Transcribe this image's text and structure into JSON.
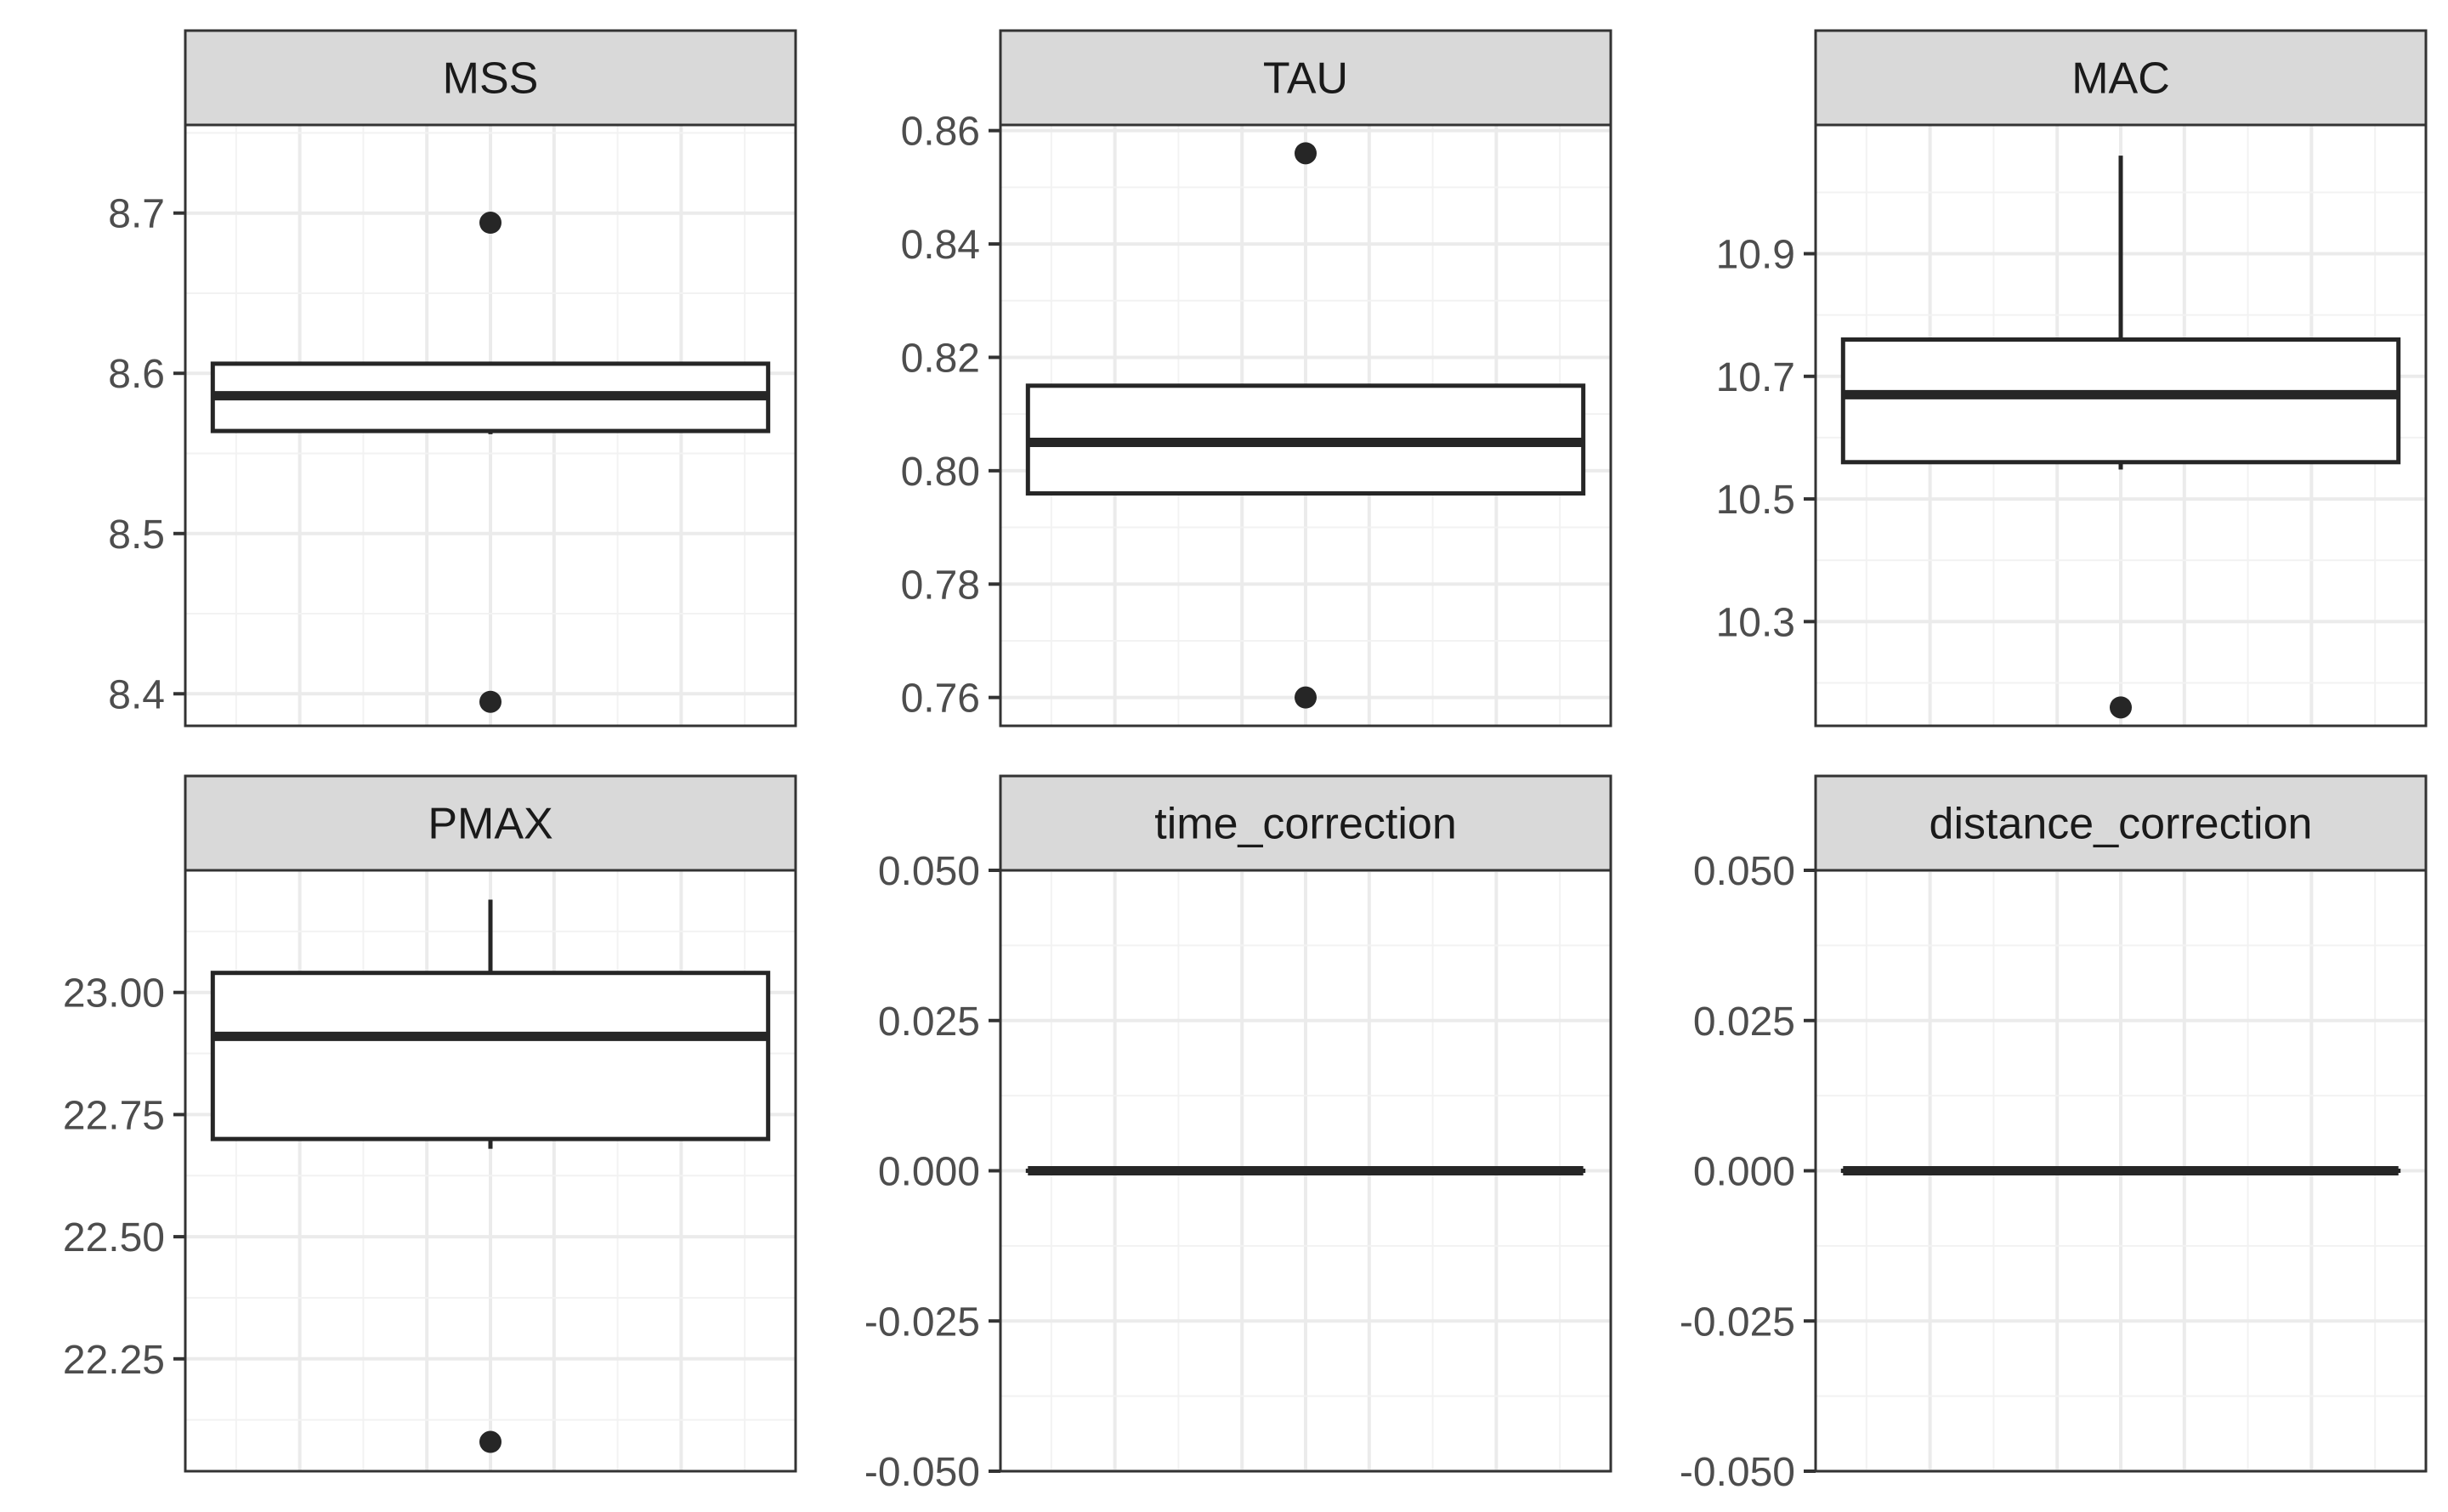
{
  "colors": {
    "background": "#ffffff",
    "panel_background": "#ffffff",
    "panel_border": "#333333",
    "strip_fill": "#d9d9d9",
    "strip_border": "#333333",
    "strip_text": "#1a1a1a",
    "grid_major": "#ebebeb",
    "grid_minor": "#f2f2f2",
    "box": "#262626",
    "outlier": "#262626",
    "tick_label": "#4d4d4d",
    "tick_mark": "#333333"
  },
  "chart_data": [
    {
      "type": "box",
      "facet": "MSS",
      "ylim": [
        8.38,
        8.755
      ],
      "yticks": [
        8.4,
        8.5,
        8.6,
        8.7
      ],
      "ytick_labels": [
        "8.4",
        "8.5",
        "8.6",
        "8.7"
      ],
      "grid": true,
      "box": {
        "whisker_low": 8.562,
        "q1": 8.564,
        "median": 8.586,
        "q3": 8.606,
        "whisker_high": 8.607
      },
      "outliers": [
        8.694,
        8.395
      ]
    },
    {
      "type": "box",
      "facet": "TAU",
      "ylim": [
        0.755,
        0.861
      ],
      "yticks": [
        0.76,
        0.78,
        0.8,
        0.82,
        0.84,
        0.86
      ],
      "ytick_labels": [
        "0.76",
        "0.78",
        "0.80",
        "0.82",
        "0.84",
        "0.86"
      ],
      "grid": true,
      "box": {
        "whisker_low": 0.796,
        "q1": 0.796,
        "median": 0.805,
        "q3": 0.815,
        "whisker_high": 0.815
      },
      "outliers": [
        0.856,
        0.76
      ]
    },
    {
      "type": "box",
      "facet": "MAC",
      "ylim": [
        10.13,
        11.11
      ],
      "yticks": [
        10.3,
        10.5,
        10.7,
        10.9
      ],
      "ytick_labels": [
        "10.3",
        "10.5",
        "10.7",
        "10.9"
      ],
      "grid": true,
      "box": {
        "whisker_low": 10.548,
        "q1": 10.56,
        "median": 10.67,
        "q3": 10.76,
        "whisker_high": 11.06
      },
      "outliers": [
        10.16
      ]
    },
    {
      "type": "box",
      "facet": "PMAX",
      "ylim": [
        22.02,
        23.25
      ],
      "yticks": [
        22.25,
        22.5,
        22.75,
        23.0
      ],
      "ytick_labels": [
        "22.25",
        "22.50",
        "22.75",
        "23.00"
      ],
      "grid": true,
      "box": {
        "whisker_low": 22.68,
        "q1": 22.7,
        "median": 22.91,
        "q3": 23.04,
        "whisker_high": 23.19
      },
      "outliers": [
        22.08
      ]
    },
    {
      "type": "box",
      "facet": "time_correction",
      "ylim": [
        -0.05,
        0.05
      ],
      "yticks": [
        -0.05,
        -0.025,
        0.0,
        0.025,
        0.05
      ],
      "ytick_labels": [
        "-0.050",
        "-0.025",
        "0.000",
        "0.025",
        "0.050"
      ],
      "grid": true,
      "box": {
        "whisker_low": 0,
        "q1": 0,
        "median": 0,
        "q3": 0,
        "whisker_high": 0
      },
      "outliers": []
    },
    {
      "type": "box",
      "facet": "distance_correction",
      "ylim": [
        -0.05,
        0.05
      ],
      "yticks": [
        -0.05,
        -0.025,
        0.0,
        0.025,
        0.05
      ],
      "ytick_labels": [
        "-0.050",
        "-0.025",
        "0.000",
        "0.025",
        "0.050"
      ],
      "grid": true,
      "box": {
        "whisker_low": 0,
        "q1": 0,
        "median": 0,
        "q3": 0,
        "whisker_high": 0
      },
      "outliers": []
    }
  ]
}
